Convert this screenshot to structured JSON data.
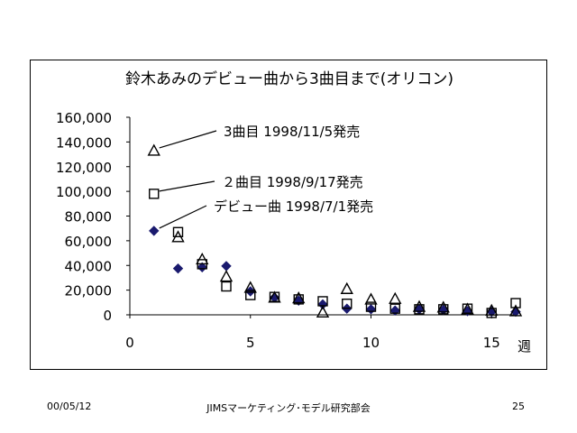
{
  "chart_data": {
    "type": "scatter",
    "title": "鈴木あみのデビュー曲から3曲目まで(オリコン)",
    "xlabel": "週",
    "ylabel": "",
    "xlim": [
      0,
      16
    ],
    "ylim": [
      0,
      160000
    ],
    "x_ticks": [
      0,
      5,
      10,
      15
    ],
    "y_ticks": [
      0,
      20000,
      40000,
      60000,
      80000,
      100000,
      120000,
      140000,
      160000
    ],
    "y_tick_labels": [
      "0",
      "20,000",
      "40,000",
      "60,000",
      "80,000",
      "100,000",
      "120,000",
      "140,000",
      "160,000"
    ],
    "x_tick_labels": [
      "0",
      "5",
      "10",
      "15"
    ],
    "grid": false,
    "series": [
      {
        "marker": "diamond",
        "color": "#1a1a6e",
        "x": [
          1,
          2,
          3,
          4,
          5,
          6,
          7,
          8,
          9,
          10,
          11,
          12,
          13,
          14,
          15,
          16
        ],
        "y": [
          68000,
          37500,
          38500,
          39500,
          19000,
          14000,
          11500,
          8500,
          5000,
          4500,
          3500,
          4500,
          4000,
          3000,
          2500,
          2500
        ]
      },
      {
        "marker": "square",
        "color": "#000000",
        "x": [
          1,
          2,
          3,
          4,
          5,
          6,
          7,
          8,
          9,
          10,
          11,
          12,
          13,
          14,
          15,
          16
        ],
        "y": [
          98000,
          67000,
          41000,
          23000,
          16000,
          14500,
          12500,
          11000,
          9000,
          6500,
          5000,
          4500,
          4500,
          5000,
          1500,
          9500
        ]
      },
      {
        "marker": "triangle",
        "color": "#000000",
        "x": [
          1,
          2,
          3,
          4,
          5,
          6,
          7,
          8,
          9,
          10,
          11,
          12,
          13,
          14,
          15,
          16
        ],
        "y": [
          133000,
          63000,
          45000,
          31000,
          22000,
          14000,
          13500,
          2000,
          21000,
          12500,
          13000,
          6500,
          6000,
          4500,
          3500,
          3000
        ]
      }
    ],
    "annotations": [
      {
        "text": "デビュー曲  1998/7/1発売",
        "x": 1,
        "y": 68000
      },
      {
        "text": "２曲目  1998/9/17発売",
        "x": 1,
        "y": 98000
      },
      {
        "text": "3曲目  1998/11/5発売",
        "x": 1,
        "y": 133000
      }
    ]
  },
  "footer": {
    "date": "00/05/12",
    "center": "JIMSマーケティング･モデル研究部会",
    "page": "25"
  }
}
